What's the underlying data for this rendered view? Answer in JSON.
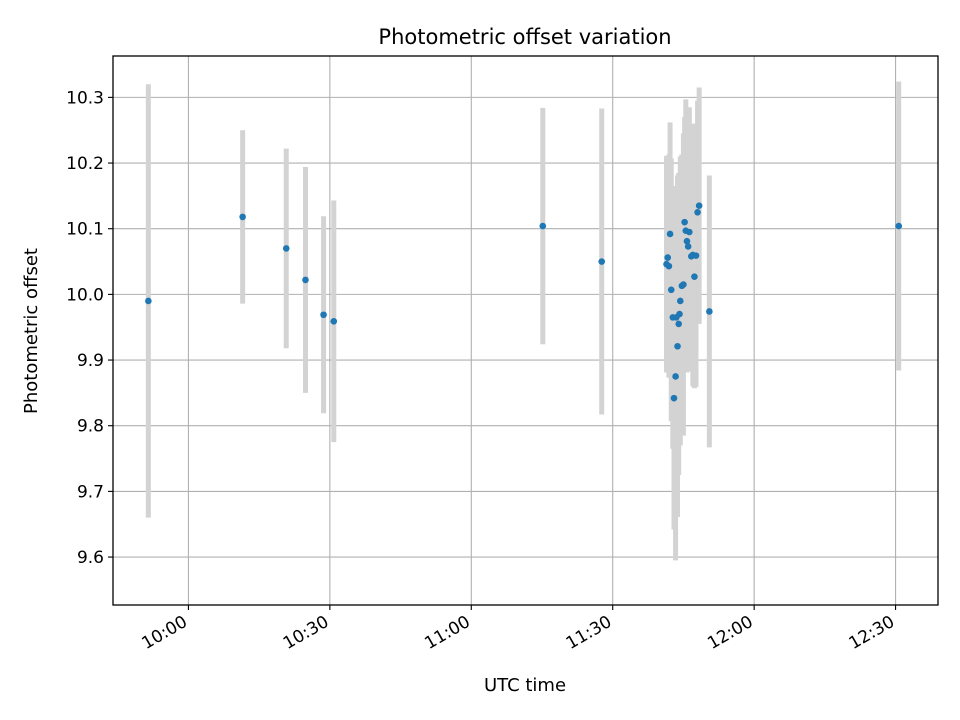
{
  "chart_data": {
    "type": "scatter",
    "title": "Photometric offset variation",
    "xlabel": "UTC time",
    "ylabel": "Photometric offset",
    "x_ticks": [
      "10:00",
      "10:30",
      "11:00",
      "11:30",
      "12:00",
      "12:30"
    ],
    "y_ticks": [
      "9.6",
      "9.7",
      "9.8",
      "9.9",
      "10.0",
      "10.1",
      "10.2",
      "10.3"
    ],
    "xlim": [
      "09:44",
      "12:39"
    ],
    "ylim": [
      9.527,
      10.363
    ],
    "grid": true,
    "legend": "none",
    "colors": {
      "marker": "#1f77b4",
      "errorbar": "#d3d3d3",
      "grid": "#b0b0b0"
    },
    "series": [
      {
        "points": [
          {
            "x": "09:51:30",
            "y": 9.99,
            "err": 0.33
          },
          {
            "x": "10:11:30",
            "y": 10.118,
            "err": 0.132
          },
          {
            "x": "10:20:45",
            "y": 10.07,
            "err": 0.152
          },
          {
            "x": "10:24:50",
            "y": 10.022,
            "err": 0.172
          },
          {
            "x": "10:28:40",
            "y": 9.969,
            "err": 0.15
          },
          {
            "x": "10:30:50",
            "y": 9.959,
            "err": 0.184
          },
          {
            "x": "11:15:10",
            "y": 10.104,
            "err": 0.18
          },
          {
            "x": "11:27:40",
            "y": 10.05,
            "err": 0.233
          },
          {
            "x": "11:41:25",
            "y": 10.046,
            "err": 0.165
          },
          {
            "x": "11:41:40",
            "y": 10.056,
            "err": 0.155
          },
          {
            "x": "11:41:55",
            "y": 10.043,
            "err": 0.17
          },
          {
            "x": "11:42:10",
            "y": 10.092,
            "err": 0.17
          },
          {
            "x": "11:42:25",
            "y": 10.007,
            "err": 0.2
          },
          {
            "x": "11:42:45",
            "y": 9.965,
            "err": 0.2
          },
          {
            "x": "11:43:00",
            "y": 9.842,
            "err": 0.2
          },
          {
            "x": "11:43:20",
            "y": 9.875,
            "err": 0.28
          },
          {
            "x": "11:43:30",
            "y": 9.965,
            "err": 0.2
          },
          {
            "x": "11:43:45",
            "y": 9.921,
            "err": 0.26
          },
          {
            "x": "11:44:00",
            "y": 9.955,
            "err": 0.23
          },
          {
            "x": "11:44:10",
            "y": 9.97,
            "err": 0.2
          },
          {
            "x": "11:44:20",
            "y": 9.99,
            "err": 0.22
          },
          {
            "x": "11:44:40",
            "y": 10.013,
            "err": 0.2
          },
          {
            "x": "11:45:00",
            "y": 10.015,
            "err": 0.23
          },
          {
            "x": "11:45:15",
            "y": 10.11,
            "err": 0.16
          },
          {
            "x": "11:45:30",
            "y": 10.097,
            "err": 0.2
          },
          {
            "x": "11:45:45",
            "y": 10.081,
            "err": 0.2
          },
          {
            "x": "11:46:00",
            "y": 10.073,
            "err": 0.19
          },
          {
            "x": "11:46:15",
            "y": 10.095,
            "err": 0.19
          },
          {
            "x": "11:46:40",
            "y": 10.058,
            "err": 0.17
          },
          {
            "x": "11:47:00",
            "y": 10.06,
            "err": 0.2
          },
          {
            "x": "11:47:20",
            "y": 10.027,
            "err": 0.17
          },
          {
            "x": "11:47:40",
            "y": 10.059,
            "err": 0.2
          },
          {
            "x": "11:48:00",
            "y": 10.125,
            "err": 0.17
          },
          {
            "x": "11:48:20",
            "y": 10.135,
            "err": 0.18
          },
          {
            "x": "11:50:30",
            "y": 9.974,
            "err": 0.207
          },
          {
            "x": "12:30:40",
            "y": 10.104,
            "err": 0.22
          }
        ]
      }
    ]
  }
}
